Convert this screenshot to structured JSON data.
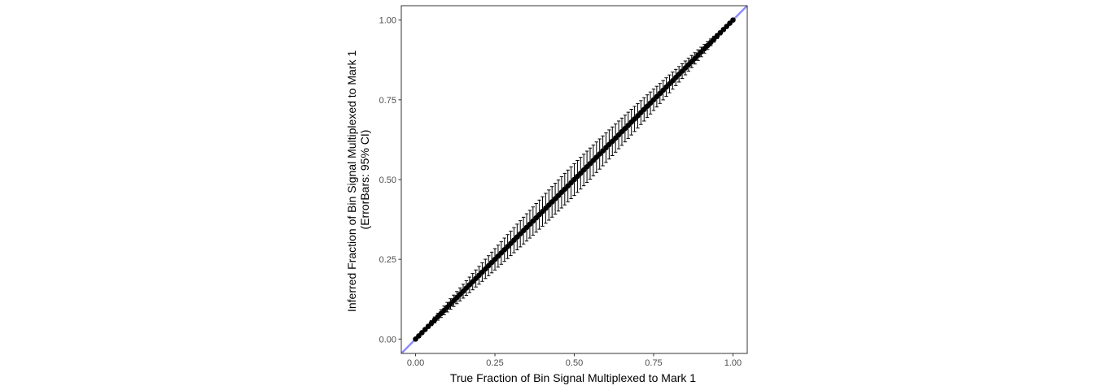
{
  "chart_data": {
    "type": "scatter",
    "title": "",
    "xlabel": "True Fraction of Bin Signal Multiplexed to Mark 1",
    "ylabel_lines": [
      "Inferred Fraction of Bin Signal Multiplexed to Mark 1",
      "(ErrorBars: 95% CI)"
    ],
    "xlim": [
      -0.045,
      1.045
    ],
    "ylim": [
      -0.045,
      1.045
    ],
    "x_ticks": [
      0,
      0.25,
      0.5,
      0.75,
      1
    ],
    "x_tick_labels": [
      "0.00",
      "0.25",
      "0.50",
      "0.75",
      "1.00"
    ],
    "y_ticks": [
      0,
      0.25,
      0.5,
      0.75,
      1
    ],
    "y_tick_labels": [
      "0.00",
      "0.25",
      "0.50",
      "0.75",
      "1.00"
    ],
    "grid": false,
    "reference_line": {
      "slope": 1,
      "intercept": 0,
      "color": "#8080ff"
    },
    "point_color": "#000000",
    "points": {
      "x_start": 0.0,
      "x_end": 1.0,
      "count": 101,
      "y_equals_x": true,
      "ci_halfwidth_at_center": 0.05,
      "ci_halfwidth_at_ends": 0.0
    }
  }
}
